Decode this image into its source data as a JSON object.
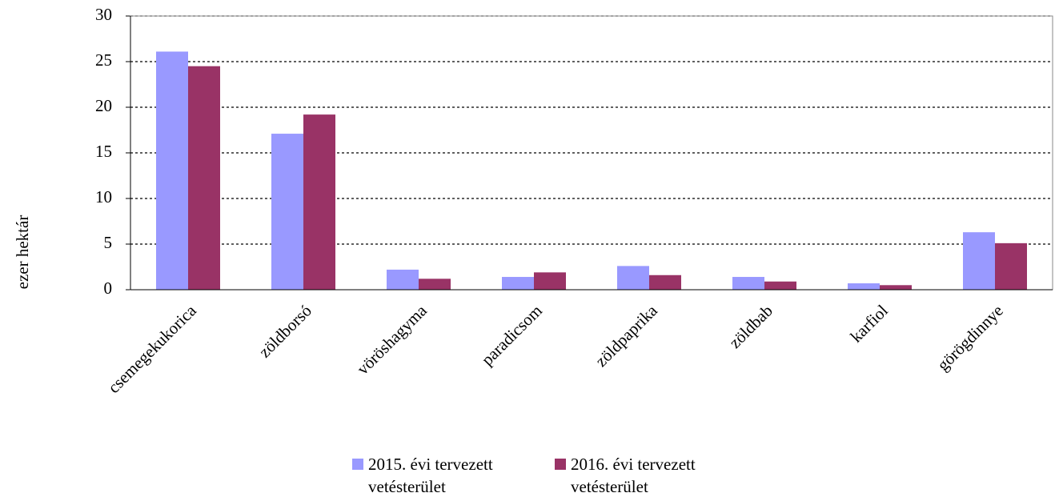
{
  "chart_data": {
    "type": "bar",
    "y_label": "ezer hektár",
    "categories": [
      "csemegekukorica",
      "zöldborsó",
      "vöröshagyma",
      "paradicsom",
      "zöldpaprika",
      "zöldbab",
      "karfiol",
      "görögdinnye"
    ],
    "series": [
      {
        "name": "2015. évi tervezett vetésterület",
        "color": "#9999ff",
        "values": [
          26.1,
          17.1,
          2.2,
          1.4,
          2.6,
          1.4,
          0.7,
          6.3
        ]
      },
      {
        "name": "2016. évi tervezett vetésterület",
        "color": "#993366",
        "values": [
          24.5,
          19.2,
          1.2,
          1.9,
          1.6,
          0.9,
          0.5,
          5.1
        ]
      }
    ],
    "ylim": [
      0,
      30
    ],
    "yticks": [
      0,
      5,
      10,
      15,
      20,
      25,
      30
    ],
    "grid": true,
    "legend": "bottom"
  }
}
